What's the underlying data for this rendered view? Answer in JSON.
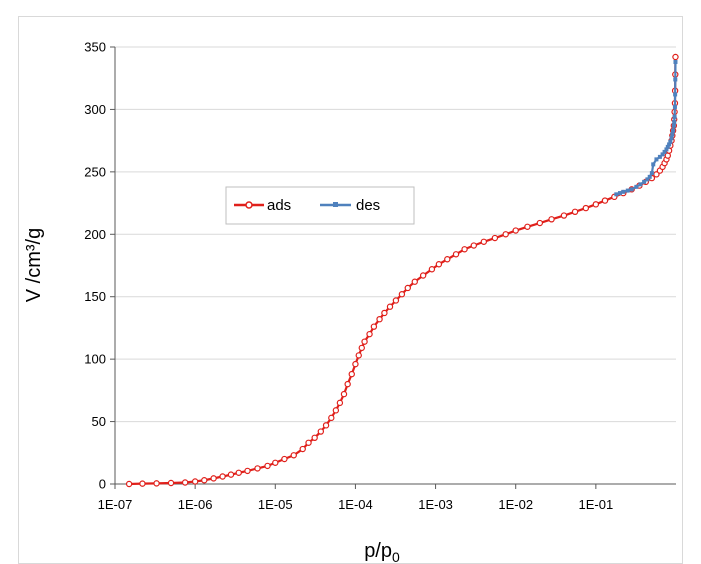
{
  "chart_data": {
    "type": "scatter",
    "xlabel_main": "p/p",
    "xlabel_sub": "0",
    "ylabel": "V /cm³/g",
    "x_scale": "log",
    "xlim": [
      1e-07,
      1
    ],
    "ylim": [
      0,
      350
    ],
    "x_ticks": [
      {
        "value": 1e-07,
        "label": "1E-07"
      },
      {
        "value": 1e-06,
        "label": "1E-06"
      },
      {
        "value": 1e-05,
        "label": "1E-05"
      },
      {
        "value": 0.0001,
        "label": "1E-04"
      },
      {
        "value": 0.001,
        "label": "1E-03"
      },
      {
        "value": 0.01,
        "label": "1E-02"
      },
      {
        "value": 0.1,
        "label": "1E-01"
      }
    ],
    "y_ticks": [
      0,
      50,
      100,
      150,
      200,
      250,
      300,
      350
    ],
    "grid": "horizontal",
    "legend_position": "center-left",
    "series": [
      {
        "name": "ads",
        "color": "#e0201b",
        "marker": "open-circle",
        "x": [
          1.5e-07,
          2.2e-07,
          3.3e-07,
          5e-07,
          7.5e-07,
          1e-06,
          1.3e-06,
          1.7e-06,
          2.2e-06,
          2.8e-06,
          3.5e-06,
          4.5e-06,
          6e-06,
          8e-06,
          1e-05,
          1.3e-05,
          1.7e-05,
          2.2e-05,
          2.6e-05,
          3.1e-05,
          3.7e-05,
          4.3e-05,
          5e-05,
          5.7e-05,
          6.4e-05,
          7.2e-05,
          8e-05,
          9e-05,
          0.0001,
          0.00011,
          0.00012,
          0.00013,
          0.00015,
          0.00017,
          0.0002,
          0.00023,
          0.00027,
          0.00032,
          0.00038,
          0.00045,
          0.00055,
          0.0007,
          0.0009,
          0.0011,
          0.0014,
          0.0018,
          0.0023,
          0.003,
          0.004,
          0.0055,
          0.0075,
          0.01,
          0.014,
          0.02,
          0.028,
          0.04,
          0.055,
          0.075,
          0.1,
          0.13,
          0.17,
          0.22,
          0.28,
          0.35,
          0.42,
          0.5,
          0.57,
          0.63,
          0.68,
          0.72,
          0.76,
          0.79,
          0.82,
          0.85,
          0.88,
          0.9,
          0.92,
          0.94,
          0.95,
          0.96,
          0.97,
          0.975,
          0.98,
          0.985
        ],
        "y": [
          0,
          0.3,
          0.5,
          0.8,
          1.2,
          2,
          3,
          4.5,
          6,
          7.5,
          9,
          10.5,
          12.5,
          14.5,
          17,
          20,
          23,
          28,
          33,
          37,
          42,
          47,
          53,
          59,
          65,
          72,
          80,
          88,
          96,
          103,
          109,
          114,
          120,
          126,
          132,
          137,
          142,
          147,
          152,
          157,
          162,
          167,
          172,
          176,
          180,
          184,
          188,
          191,
          194,
          197,
          200,
          203,
          206,
          209,
          212,
          215,
          218,
          221,
          224,
          227,
          230,
          233,
          236,
          239,
          242,
          245,
          248,
          251,
          254,
          257,
          260,
          263,
          267,
          271,
          275,
          279,
          283,
          287,
          292,
          298,
          305,
          315,
          328,
          342
        ]
      },
      {
        "name": "des",
        "color": "#4f81bd",
        "marker": "square",
        "x": [
          0.985,
          0.98,
          0.975,
          0.97,
          0.96,
          0.95,
          0.94,
          0.92,
          0.9,
          0.88,
          0.85,
          0.82,
          0.79,
          0.76,
          0.72,
          0.68,
          0.63,
          0.57,
          0.52,
          0.5,
          0.47,
          0.44,
          0.4,
          0.36,
          0.32,
          0.28,
          0.25,
          0.22,
          0.2,
          0.18
        ],
        "y": [
          338,
          324,
          312,
          302,
          294,
          290,
          287,
          283,
          280,
          277,
          274,
          272,
          270,
          268,
          266,
          264,
          262,
          260,
          256,
          249,
          246,
          244,
          242,
          240,
          238,
          236,
          235,
          234,
          233,
          232
        ]
      }
    ]
  }
}
